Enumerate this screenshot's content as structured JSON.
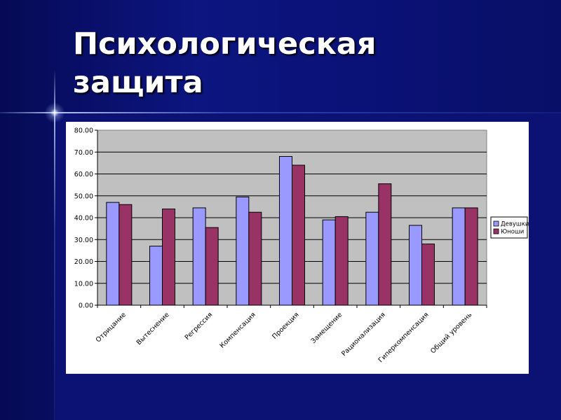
{
  "slide": {
    "title_line1": "Психологическая",
    "title_line2": "защита"
  },
  "colors": {
    "background": "#0a0f6b",
    "title": "#ffffff",
    "plot_area": "#c0c0c0",
    "series_1": "#9999ff",
    "series_2": "#993366"
  },
  "chart_data": {
    "type": "bar",
    "title": "",
    "xlabel": "",
    "ylabel": "",
    "ylim": [
      0,
      80
    ],
    "yticks": [
      "0.00",
      "10.00",
      "20.00",
      "30.00",
      "40.00",
      "50.00",
      "60.00",
      "70.00",
      "80.00"
    ],
    "grid": true,
    "legend_position": "right",
    "categories": [
      "Отрицание",
      "Вытеснение",
      "Регрессия",
      "Компенсация",
      "Проекция",
      "Замещение",
      "Рационализация",
      "Гиперкомпенсация",
      "Общий уровень"
    ],
    "series": [
      {
        "name": "Девушки",
        "color": "#9999ff",
        "values": [
          47,
          27,
          44.5,
          49.5,
          68,
          39,
          42.5,
          36.5,
          44.5
        ]
      },
      {
        "name": "Юноши",
        "color": "#993366",
        "values": [
          46,
          44,
          35.5,
          42.5,
          64,
          40.5,
          55.5,
          28,
          44.5
        ]
      }
    ]
  }
}
